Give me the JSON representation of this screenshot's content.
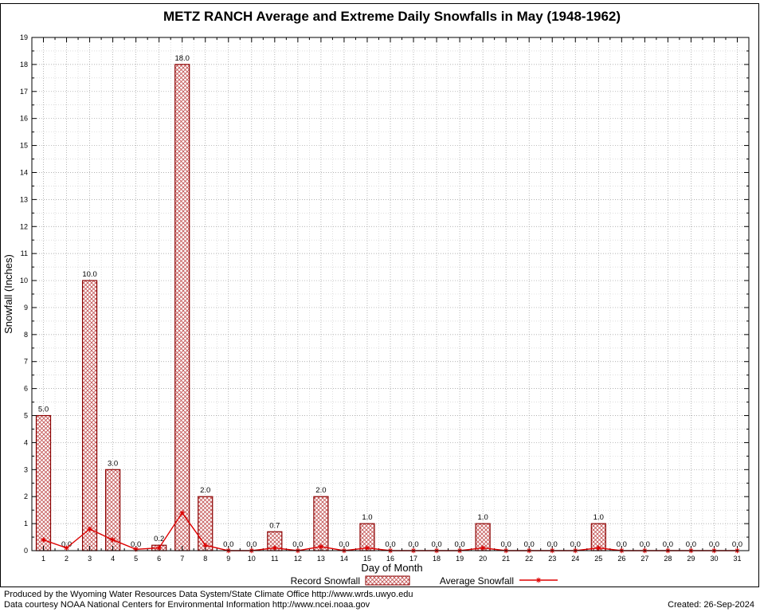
{
  "chart_data": {
    "type": "bar",
    "title": "METZ RANCH Average and Extreme Daily Snowfalls in May (1948-1962)",
    "xlabel": "Day of Month",
    "ylabel": "Snowfall (Inches)",
    "ylim": [
      0,
      19
    ],
    "xlim": [
      0.5,
      31.5
    ],
    "grid": true,
    "legend_position": "bottom",
    "x": [
      1,
      2,
      3,
      4,
      5,
      6,
      7,
      8,
      9,
      10,
      11,
      12,
      13,
      14,
      15,
      16,
      17,
      18,
      19,
      20,
      21,
      22,
      23,
      24,
      25,
      26,
      27,
      28,
      29,
      30,
      31
    ],
    "series": [
      {
        "name": "Record Snowfall",
        "type": "bar",
        "values": [
          5.0,
          0.0,
          10.0,
          3.0,
          0.0,
          0.2,
          18.0,
          2.0,
          0.0,
          0.0,
          0.7,
          0.0,
          2.0,
          0.0,
          1.0,
          0.0,
          0.0,
          0.0,
          0.0,
          1.0,
          0.0,
          0.0,
          0.0,
          0.0,
          1.0,
          0.0,
          0.0,
          0.0,
          0.0,
          0.0,
          0.0
        ]
      },
      {
        "name": "Average Snowfall",
        "type": "line",
        "values": [
          0.4,
          0.1,
          0.8,
          0.4,
          0.05,
          0.1,
          1.4,
          0.2,
          0.0,
          0.0,
          0.1,
          0.0,
          0.15,
          0.0,
          0.1,
          0.0,
          0.0,
          0.0,
          0.0,
          0.1,
          0.0,
          0.0,
          0.0,
          0.0,
          0.1,
          0.0,
          0.0,
          0.0,
          0.0,
          0.0,
          0.0
        ]
      }
    ],
    "bar_value_labels": [
      "5.0",
      "0.0",
      "10.0",
      "3.0",
      "0.0",
      "0.2",
      "18.0",
      "2.0",
      "0.0",
      "0.0",
      "0.7",
      "0.0",
      "2.0",
      "0.0",
      "1.0",
      "0.0",
      "0.0",
      "0.0",
      "0.0",
      "1.0",
      "0.0",
      "0.0",
      "0.0",
      "0.0",
      "1.0",
      "0.0",
      "0.0",
      "0.0",
      "0.0",
      "0.0",
      "0.0"
    ],
    "colors": {
      "bar_border": "#8b0000",
      "bar_hatch": "#c14f4f",
      "line": "#dd0000",
      "grid_major": "#999999",
      "grid_minor": "#c8c8c8"
    }
  },
  "footer": {
    "line1": "Produced by the Wyoming Water Resources Data System/State Climate Office http://www.wrds.uwyo.edu",
    "line2": "Data courtesy NOAA National Centers for Environmental Information http://www.ncei.noaa.gov",
    "created": "Created: 26-Sep-2024"
  }
}
